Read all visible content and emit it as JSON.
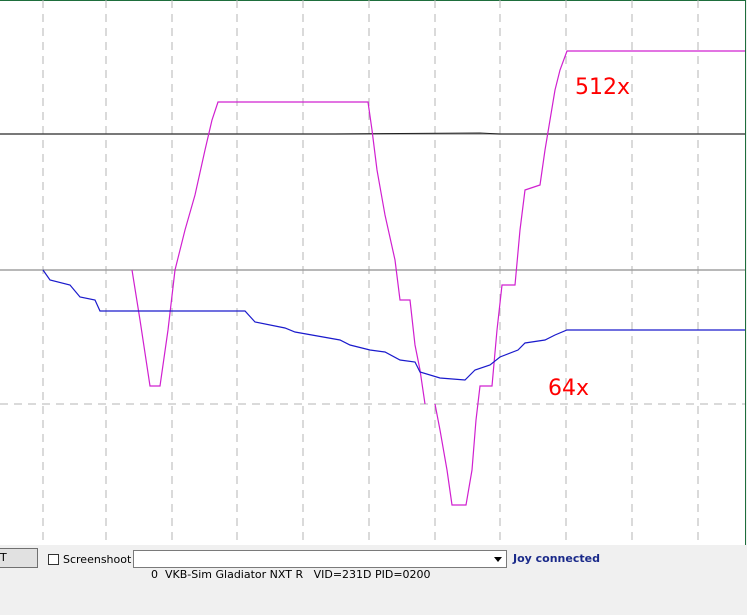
{
  "plot": {
    "annotations": [
      "512x",
      "64x"
    ]
  },
  "toolbar": {
    "button": "T",
    "checkbox": "Screenshoot",
    "device": "0  VKB-Sim Gladiator NXT R   VID=231D PID=0200",
    "status": "Joy connected"
  }
}
